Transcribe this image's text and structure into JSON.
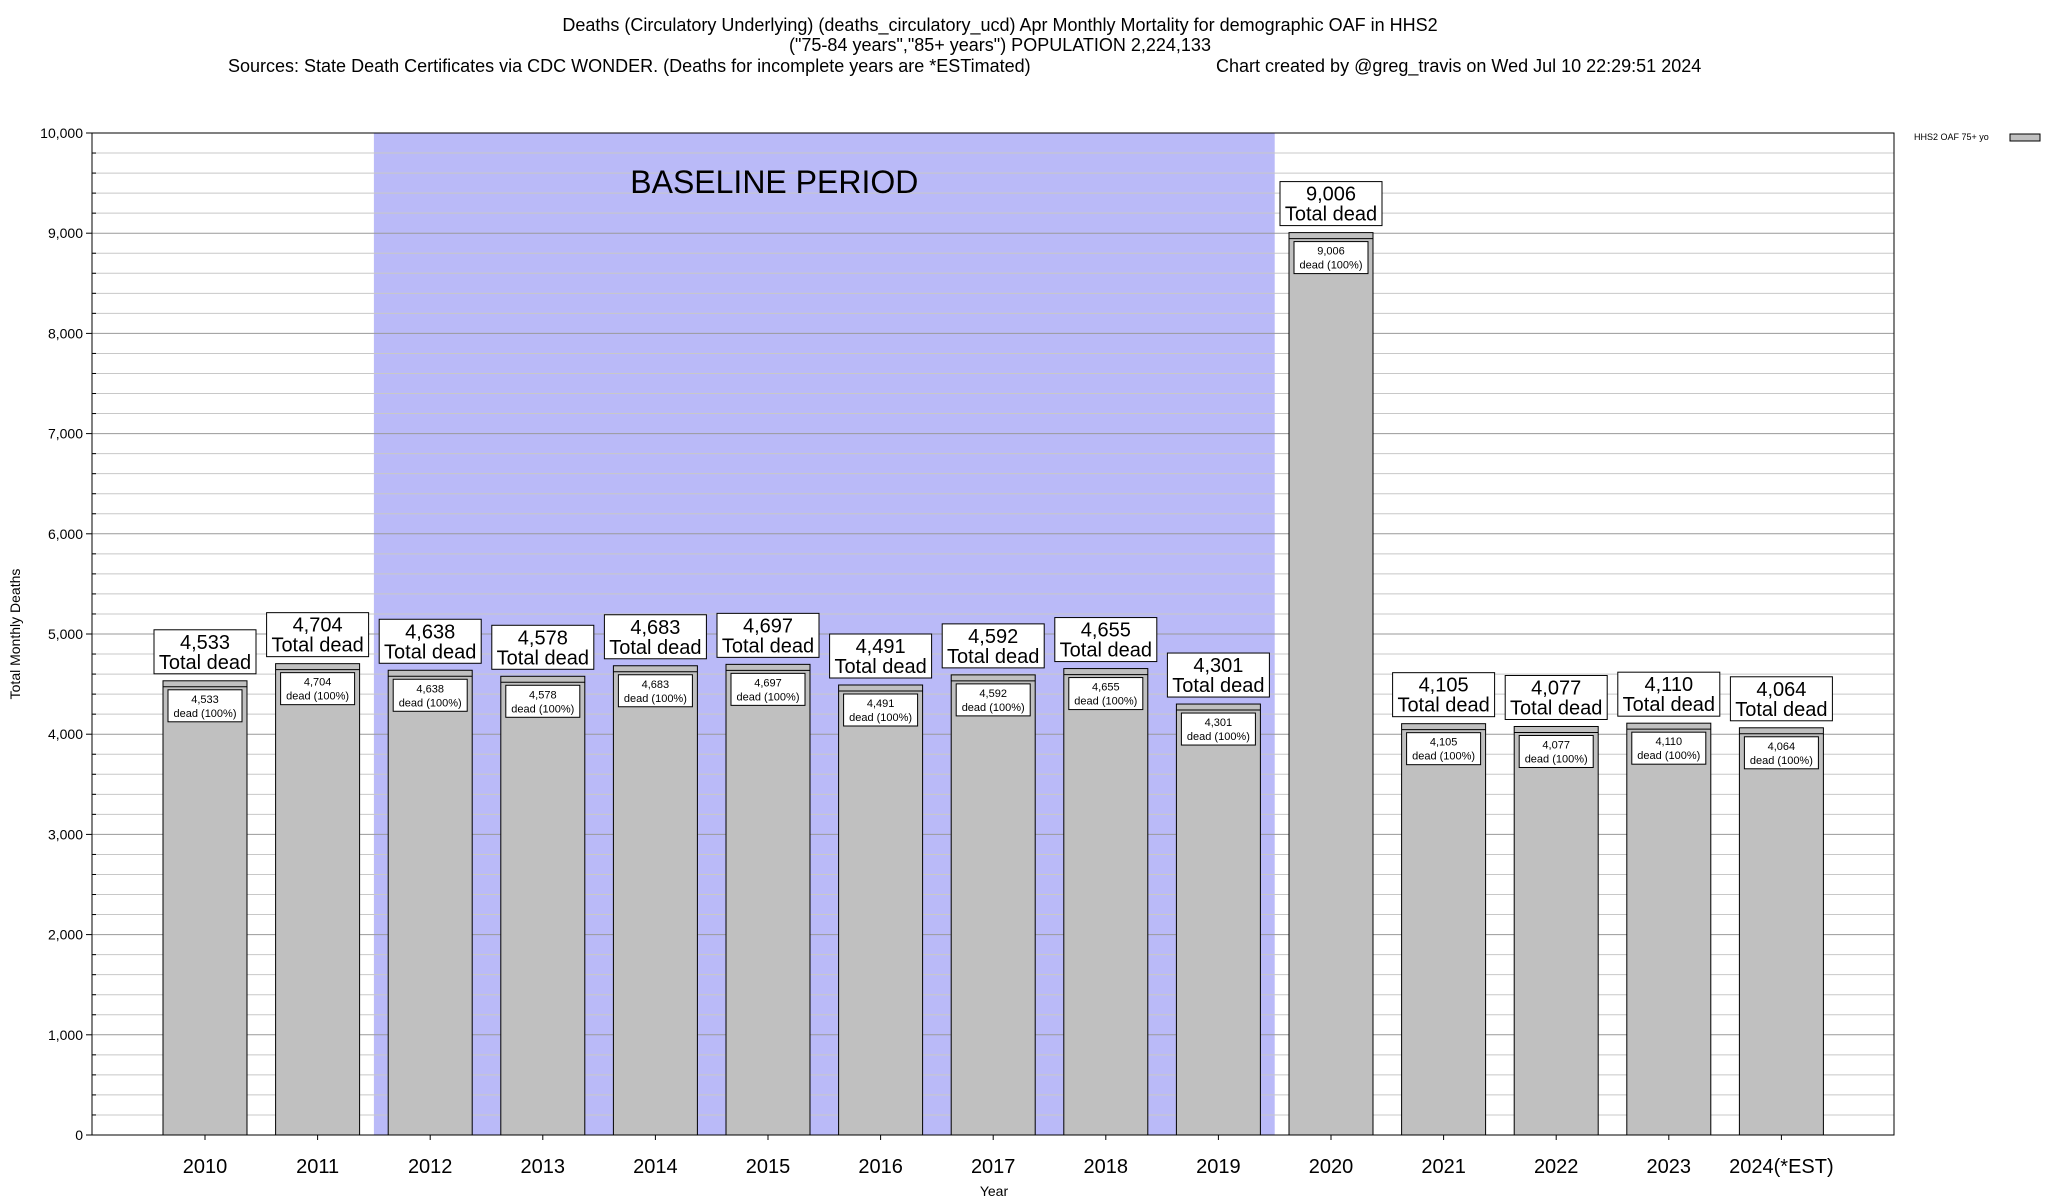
{
  "chart_data": {
    "type": "bar",
    "title_lines": [
      "Deaths (Circulatory Underlying) (deaths_circulatory_ucd) Apr Monthly Mortality for demographic OAF in HHS2",
      "(\"75-84 years\",\"85+ years\") POPULATION 2,224,133"
    ],
    "sources": "Sources: State Death Certificates via CDC WONDER. (Deaths for incomplete years are *ESTimated)",
    "created": "Chart created by @greg_travis on Wed Jul 10 22:29:51 2024",
    "xlabel": "Year",
    "ylabel": "Total Monthly Deaths",
    "ylim": [
      0,
      10000
    ],
    "yticks": [
      0,
      1000,
      2000,
      3000,
      4000,
      5000,
      6000,
      7000,
      8000,
      9000,
      10000
    ],
    "ytick_labels": [
      "0",
      "1,000",
      "2,000",
      "3,000",
      "4,000",
      "5,000",
      "6,000",
      "7,000",
      "8,000",
      "9,000",
      "10,000"
    ],
    "categories": [
      "2010",
      "2011",
      "2012",
      "2013",
      "2014",
      "2015",
      "2016",
      "2017",
      "2018",
      "2019",
      "2020",
      "2021",
      "2022",
      "2023",
      "2024(*EST)"
    ],
    "values": [
      4533,
      4704,
      4638,
      4578,
      4683,
      4697,
      4491,
      4592,
      4655,
      4301,
      9006,
      4105,
      4077,
      4110,
      4064
    ],
    "value_labels": [
      "4,533",
      "4,704",
      "4,638",
      "4,578",
      "4,683",
      "4,697",
      "4,491",
      "4,592",
      "4,655",
      "4,301",
      "9,006",
      "4,105",
      "4,077",
      "4,110",
      "4,064"
    ],
    "total_label": "Total dead",
    "pct_label": "dead (100%)",
    "baseline": {
      "label": "BASELINE PERIOD",
      "from": "2012",
      "to": "2019",
      "color": "#babaf8"
    },
    "series": [
      {
        "name": "HHS2 OAF 75+ yo",
        "color": "#c0c0c0"
      }
    ],
    "legend_position": "top-right",
    "grid": true
  }
}
